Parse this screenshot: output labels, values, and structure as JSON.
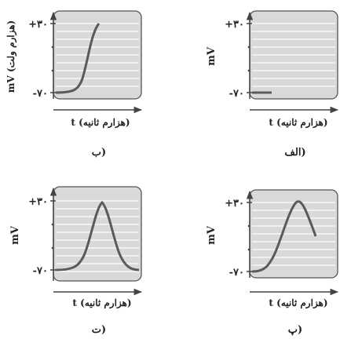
{
  "panels": [
    {
      "id": "alef",
      "caption": "الف)",
      "ylabel": "mV",
      "xlabel": "t (هزارم ثانیه)",
      "ytick_top": "+۳۰",
      "ytick_bottom": "-۷۰",
      "trace": "flat resting potential",
      "line_color": "#5a5a5a",
      "plot_bg": "#d9d9d9"
    },
    {
      "id": "be_top",
      "caption": "ب)",
      "ylabel": "mV (هزارم ولت)",
      "xlabel": "t (هزارم ثانیه)",
      "ytick_top": "+۳۰",
      "ytick_bottom": "-۷۰",
      "trace": "rising depolarization",
      "line_color": "#5a5a5a",
      "plot_bg": "#d9d9d9"
    },
    {
      "id": "pe",
      "caption": "پ)",
      "ylabel": "mV",
      "xlabel": "t (هزارم ثانیه)",
      "ytick_top": "+۳۰",
      "ytick_bottom": "-۷۰",
      "trace": "rise then partial fall",
      "line_color": "#5a5a5a",
      "plot_bg": "#d9d9d9"
    },
    {
      "id": "te",
      "caption": "ت)",
      "ylabel": "mV",
      "xlabel": "t (هزارم ثانیه)",
      "ytick_top": "+۳۰",
      "ytick_bottom": "-۷۰",
      "trace": "full action potential",
      "line_color": "#5a5a5a",
      "plot_bg": "#d9d9d9"
    }
  ]
}
